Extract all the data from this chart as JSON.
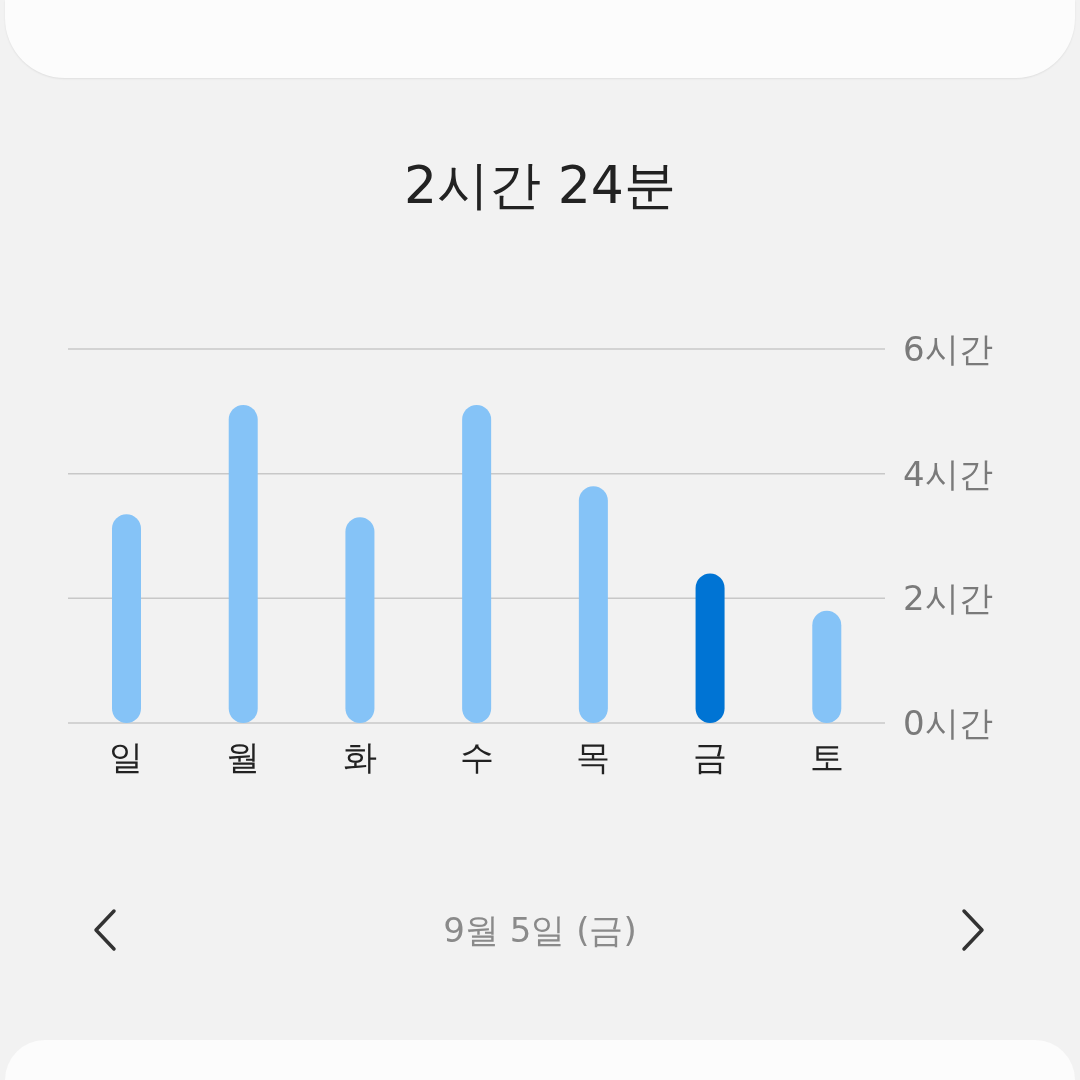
{
  "chart_data": {
    "type": "bar",
    "title": "2시간 24분",
    "categories": [
      "일",
      "월",
      "화",
      "수",
      "목",
      "금",
      "토"
    ],
    "values": [
      3.35,
      5.1,
      3.3,
      5.1,
      3.8,
      2.4,
      1.8
    ],
    "colors": [
      "#85c3f7",
      "#85c3f7",
      "#85c3f7",
      "#85c3f7",
      "#85c3f7",
      "#0074d4",
      "#85c3f7"
    ],
    "ylim": [
      0,
      6
    ],
    "yticks": [
      {
        "value": 0,
        "label": "0시간"
      },
      {
        "value": 2,
        "label": "2시간"
      },
      {
        "value": 4,
        "label": "4시간"
      },
      {
        "value": 6,
        "label": "6시간"
      }
    ],
    "grid": "y",
    "annotations": [
      "9월 5일 (금)"
    ]
  }
}
